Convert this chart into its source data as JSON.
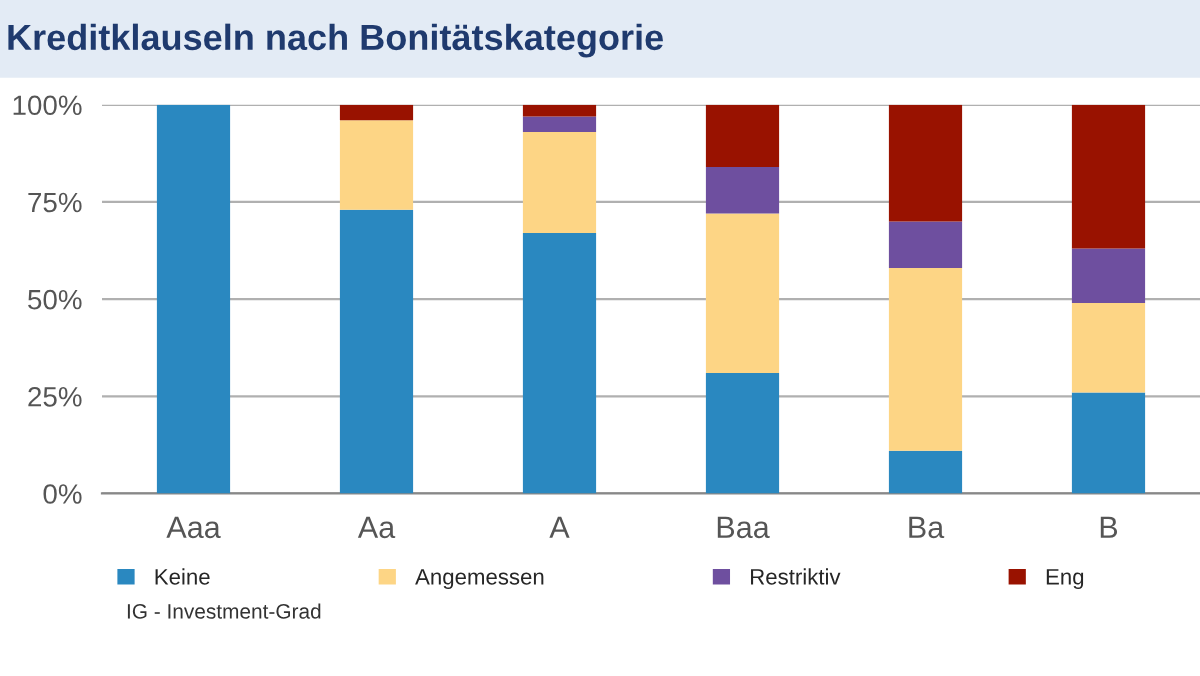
{
  "chart_data": {
    "type": "bar",
    "title": "Kreditklauseln nach Bonitätskategorie",
    "categories": [
      "Aaa",
      "Aa",
      "A",
      "Baa",
      "Ba",
      "B"
    ],
    "series": [
      {
        "name": "Keine",
        "color": "#2a88c0",
        "values": [
          100,
          73,
          67,
          31,
          11,
          26
        ]
      },
      {
        "name": "Angemessen",
        "color": "#fdd585",
        "values": [
          0,
          23,
          26,
          41,
          47,
          23
        ]
      },
      {
        "name": "Restriktiv",
        "color": "#6e4f9f",
        "values": [
          0,
          0,
          4,
          12,
          12,
          14
        ]
      },
      {
        "name": "Eng",
        "color": "#991200",
        "values": [
          0,
          4,
          3,
          16,
          30,
          37
        ]
      }
    ],
    "stacked": true,
    "ylim": [
      0,
      100
    ],
    "yticks": [
      {
        "value": 0,
        "label": "0%"
      },
      {
        "value": 25,
        "label": "25%"
      },
      {
        "value": 50,
        "label": "50%"
      },
      {
        "value": 75,
        "label": "75%"
      },
      {
        "value": 100,
        "label": "100%"
      }
    ],
    "grid": "y",
    "legend": "bottom",
    "annotations": [
      "IG - Investment-Grad"
    ]
  }
}
